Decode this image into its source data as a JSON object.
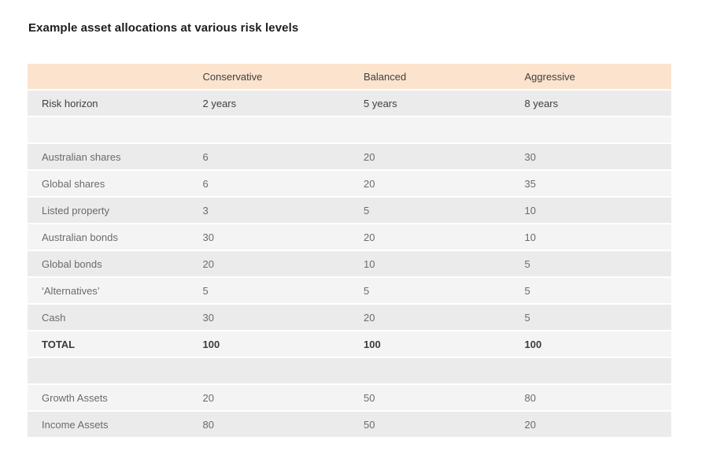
{
  "page": {
    "title": "Example asset allocations at various risk levels"
  },
  "colors": {
    "header_bg": "#fce3cd",
    "row_dark_bg": "#ebebeb",
    "row_light_bg": "#f4f4f4",
    "text_dark": "#404040",
    "text_gray": "#6b6b6b"
  },
  "table": {
    "columns": [
      "",
      "Conservative",
      "Balanced",
      "Aggressive"
    ],
    "rows": [
      {
        "label": "Risk horizon",
        "values": [
          "2 years",
          "5 years",
          "8 years"
        ]
      },
      {
        "label": "",
        "values": [
          "",
          "",
          ""
        ]
      },
      {
        "label": "Australian shares",
        "values": [
          "6",
          "20",
          "30"
        ]
      },
      {
        "label": "Global shares",
        "values": [
          "6",
          "20",
          "35"
        ]
      },
      {
        "label": "Listed property",
        "values": [
          "3",
          "5",
          "10"
        ]
      },
      {
        "label": "Australian bonds",
        "values": [
          "30",
          "20",
          "10"
        ]
      },
      {
        "label": "Global bonds",
        "values": [
          "20",
          "10",
          "5"
        ]
      },
      {
        "label": "‘Alternatives’",
        "values": [
          "5",
          "5",
          "5"
        ]
      },
      {
        "label": "Cash",
        "values": [
          "30",
          "20",
          "5"
        ]
      },
      {
        "label": "TOTAL",
        "values": [
          "100",
          "100",
          "100"
        ]
      },
      {
        "label": "",
        "values": [
          "",
          "",
          ""
        ]
      },
      {
        "label": "Growth Assets",
        "values": [
          "20",
          "50",
          "80"
        ]
      },
      {
        "label": "Income Assets",
        "values": [
          "80",
          "50",
          "20"
        ]
      }
    ]
  }
}
